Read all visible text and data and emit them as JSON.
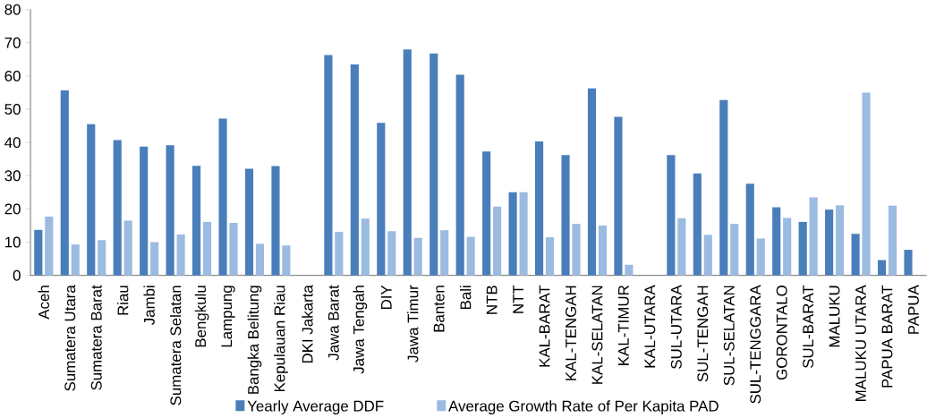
{
  "chart_data": {
    "type": "bar",
    "categories": [
      "Aceh",
      "Sumatera Utara",
      "Sumatera Barat",
      "Riau",
      "Jambi",
      "Sumatera Selatan",
      "Bengkulu",
      "Lampung",
      "Bangka Belitung",
      "Kepulauan Riau",
      "DKI Jakarta",
      "Jawa Barat",
      "Jawa Tengah",
      "DIY",
      "Jawa Timur",
      "Banten",
      "Bali",
      "NTB",
      "NTT",
      "KAL-BARAT",
      "KAL-TENGAH",
      "KAL-SELATAN",
      "KAL-TIMUR",
      "KAL-UTARA",
      "SUL-UTARA",
      "SUL-TENGAH",
      "SUL-SELATAN",
      "SUL-TENGGARA",
      "GORONTALO",
      "SUL-BARAT",
      "MALUKU",
      "MALUKU UTARA",
      "PAPUA BARAT",
      "PAPUA"
    ],
    "series": [
      {
        "name": "Yearly Average DDF",
        "color": "#4a7ebb",
        "values": [
          13.7,
          55.7,
          45.5,
          40.7,
          38.8,
          39.2,
          33.0,
          47.2,
          32.1,
          32.9,
          null,
          66.3,
          63.5,
          45.9,
          68.0,
          66.8,
          60.4,
          37.3,
          25.0,
          40.3,
          36.2,
          56.3,
          47.7,
          null,
          36.2,
          30.7,
          52.8,
          27.6,
          20.5,
          16.1,
          19.8,
          12.5,
          4.6,
          7.7
        ]
      },
      {
        "name": "Average Growth Rate of Per Kapita PAD",
        "color": "#9bbbe0",
        "values": [
          17.7,
          9.3,
          10.6,
          16.5,
          10.0,
          12.3,
          16.1,
          15.8,
          9.5,
          9.0,
          null,
          13.1,
          17.1,
          13.3,
          11.3,
          13.6,
          11.6,
          20.7,
          25.0,
          11.5,
          15.5,
          15.0,
          3.2,
          null,
          17.2,
          12.2,
          15.5,
          11.1,
          17.3,
          23.5,
          21.1,
          55.0,
          21.0,
          null
        ]
      }
    ],
    "ylim": [
      0,
      80
    ],
    "yticks": [
      0,
      10,
      20,
      30,
      40,
      50,
      60,
      70,
      80
    ],
    "legend": "bottom"
  }
}
